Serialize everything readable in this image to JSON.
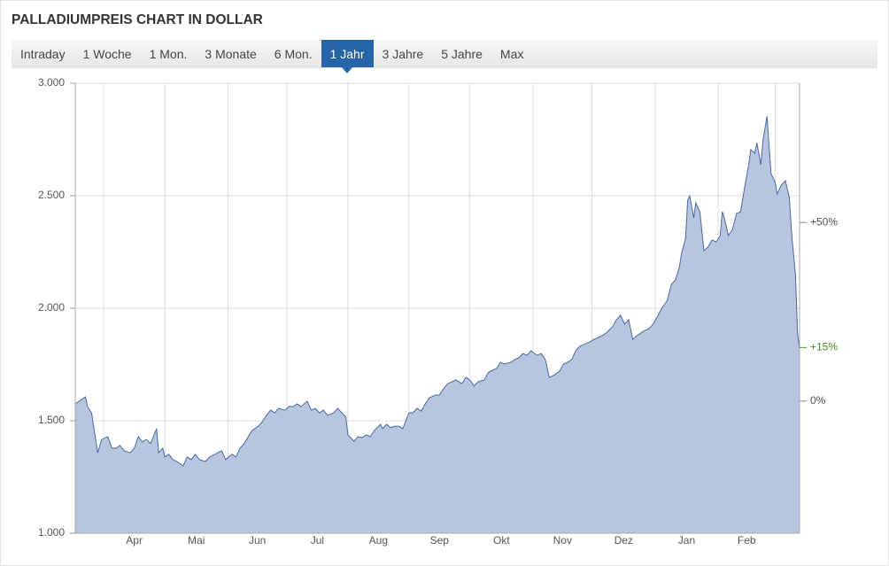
{
  "chart_data": {
    "type": "area",
    "title": "PALLADIUMPREIS CHART IN DOLLAR",
    "tabs": [
      "Intraday",
      "1 Woche",
      "1 Mon.",
      "3 Monate",
      "6 Mon.",
      "1 Jahr",
      "3 Jahre",
      "5 Jahre",
      "Max"
    ],
    "active_tab": 5,
    "color": "#b3c2dd",
    "line_color": "#4a68a3",
    "x": [
      0,
      3,
      5,
      6,
      8,
      9,
      11,
      13,
      16,
      18,
      20,
      22,
      24,
      27,
      29,
      31,
      33,
      35,
      37,
      40,
      41,
      43,
      44,
      46,
      48,
      50,
      53,
      55,
      57,
      59,
      61,
      64,
      66,
      68,
      70,
      72,
      74,
      77,
      79,
      81,
      83,
      85,
      87,
      90,
      92,
      94,
      96,
      98,
      100,
      103,
      105,
      107,
      109,
      111,
      114,
      116,
      118,
      120,
      122,
      124,
      127,
      129,
      131,
      133,
      134,
      137,
      139,
      141,
      143,
      145,
      147,
      150,
      151,
      153,
      155,
      157,
      159,
      161,
      164,
      166,
      168,
      170,
      172,
      174,
      177,
      179,
      181,
      183,
      185,
      187,
      190,
      192,
      194,
      196,
      198,
      201,
      203,
      205,
      207,
      209,
      211,
      214,
      216,
      218,
      220,
      222,
      224,
      227,
      229,
      231,
      233,
      235,
      238,
      240,
      242,
      244,
      246,
      248,
      251,
      253,
      255,
      257,
      259,
      261,
      264,
      266,
      268,
      270,
      272,
      274,
      276,
      278,
      280,
      282,
      284,
      286,
      288,
      291,
      293,
      295,
      297,
      298,
      300,
      301,
      302,
      304,
      305,
      307,
      309,
      311,
      313,
      315,
      317,
      318,
      319,
      321,
      323,
      325,
      327,
      329,
      331,
      332,
      334,
      335,
      337,
      338,
      340,
      342,
      344,
      345,
      347,
      349,
      351,
      352,
      354,
      355,
      356
    ],
    "values": [
      1575,
      1594,
      1606,
      1563,
      1535,
      1476,
      1358,
      1417,
      1429,
      1378,
      1378,
      1390,
      1366,
      1358,
      1378,
      1429,
      1406,
      1417,
      1398,
      1465,
      1358,
      1378,
      1339,
      1351,
      1327,
      1319,
      1299,
      1339,
      1327,
      1351,
      1327,
      1319,
      1339,
      1347,
      1358,
      1366,
      1327,
      1351,
      1339,
      1378,
      1398,
      1429,
      1457,
      1476,
      1496,
      1524,
      1547,
      1535,
      1555,
      1547,
      1563,
      1563,
      1575,
      1563,
      1587,
      1547,
      1555,
      1535,
      1547,
      1524,
      1535,
      1555,
      1535,
      1516,
      1437,
      1409,
      1429,
      1425,
      1437,
      1429,
      1457,
      1484,
      1465,
      1484,
      1469,
      1476,
      1476,
      1465,
      1535,
      1535,
      1555,
      1543,
      1575,
      1602,
      1614,
      1614,
      1642,
      1665,
      1673,
      1681,
      1665,
      1693,
      1681,
      1654,
      1673,
      1681,
      1713,
      1724,
      1732,
      1760,
      1752,
      1760,
      1772,
      1780,
      1799,
      1791,
      1811,
      1791,
      1799,
      1772,
      1693,
      1701,
      1720,
      1752,
      1760,
      1772,
      1811,
      1831,
      1843,
      1850,
      1862,
      1870,
      1878,
      1890,
      1917,
      1949,
      1969,
      1929,
      1949,
      1862,
      1878,
      1890,
      1902,
      1909,
      1929,
      1961,
      1996,
      2035,
      2106,
      2126,
      2185,
      2244,
      2311,
      2480,
      2500,
      2402,
      2469,
      2429,
      2256,
      2272,
      2303,
      2295,
      2323,
      2429,
      2402,
      2323,
      2350,
      2421,
      2429,
      2539,
      2638,
      2705,
      2689,
      2736,
      2638,
      2744,
      2854,
      2598,
      2559,
      2508,
      2547,
      2567,
      2492,
      2343,
      2146,
      1890,
      1819
    ],
    "xlim": [
      0,
      356
    ],
    "xticks": [
      14,
      44,
      75,
      104,
      134,
      164,
      194,
      225,
      254,
      285,
      316,
      344
    ],
    "month_labels": [
      "Apr",
      "Mai",
      "Jun",
      "Jul",
      "Aug",
      "Sep",
      "Okt",
      "Nov",
      "Dez",
      "Jan",
      "Feb"
    ],
    "ylim": [
      1000,
      3000
    ],
    "yticks": [
      {
        "value": 1000,
        "label": "1.000"
      },
      {
        "value": 1500,
        "label": "1.500"
      },
      {
        "value": 2000,
        "label": "2.000"
      },
      {
        "value": 2500,
        "label": "2.500"
      },
      {
        "value": 3000,
        "label": "3.000"
      }
    ],
    "y2lim": [
      -37,
      89
    ],
    "y2ticks": [
      {
        "value": 0,
        "label": "0%"
      },
      {
        "value": 50,
        "label": "+50%"
      }
    ],
    "last_change": {
      "value": 15,
      "label": "+15%",
      "color": "#3f8f1f"
    },
    "grid": true
  }
}
